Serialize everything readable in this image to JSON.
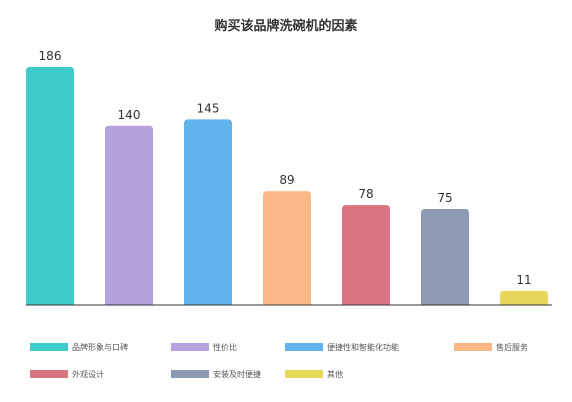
{
  "chart_data": {
    "type": "bar",
    "title": "购买该品牌洗碗机的因素",
    "categories": [
      "品牌形象与口碑",
      "性价比",
      "便捷性和智能化功能",
      "售后服务",
      "外观设计",
      "安装及时便捷",
      "其他"
    ],
    "values": [
      186,
      140,
      145,
      89,
      78,
      75,
      11
    ],
    "colors": [
      "#3ecbca",
      "#b5a1db",
      "#60b3eb",
      "#fbb886",
      "#d97580",
      "#8d9ab2",
      "#e6d65a"
    ],
    "ylim": [
      0,
      190
    ],
    "xlabel": "",
    "ylabel": "",
    "grid": false,
    "legend_position": "bottom"
  }
}
